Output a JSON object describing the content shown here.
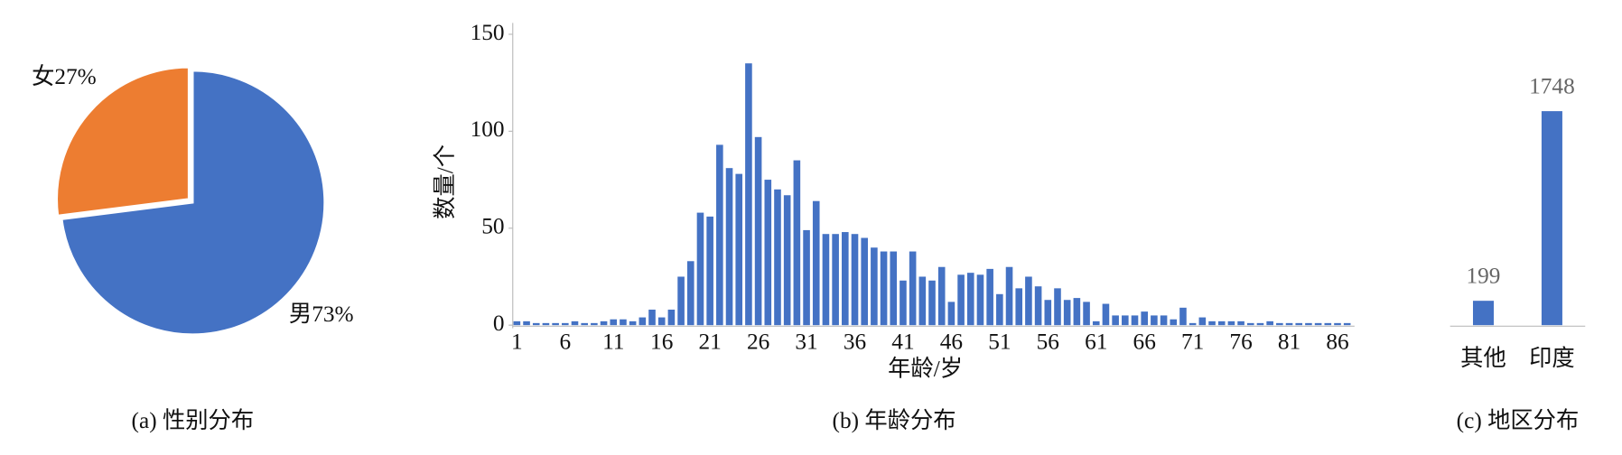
{
  "chart_data": [
    {
      "type": "pie",
      "caption": "(a) 性别分布",
      "categories": [
        "男",
        "女"
      ],
      "values": [
        73,
        27
      ],
      "value_labels": [
        "男73%",
        "女27%"
      ],
      "colors": [
        "#4472c4",
        "#ed7d31"
      ]
    },
    {
      "type": "bar",
      "caption": "(b) 年龄分布",
      "x_label": "年龄/岁",
      "y_label": "数量/个",
      "color": "#4472c4",
      "categories": [
        "1",
        null,
        null,
        null,
        null,
        "6",
        null,
        null,
        null,
        null,
        "11",
        null,
        null,
        null,
        null,
        "16",
        null,
        null,
        null,
        null,
        "21",
        null,
        null,
        null,
        null,
        "26",
        null,
        null,
        null,
        null,
        "31",
        null,
        null,
        null,
        null,
        "36",
        null,
        null,
        null,
        null,
        "41",
        null,
        null,
        null,
        null,
        "46",
        null,
        null,
        null,
        null,
        "51",
        null,
        null,
        null,
        null,
        "56",
        null,
        null,
        null,
        null,
        "61",
        null,
        null,
        null,
        null,
        "66",
        null,
        null,
        null,
        null,
        "71",
        null,
        null,
        null,
        null,
        "76",
        null,
        null,
        null,
        null,
        "81",
        null,
        null,
        null,
        null,
        "86",
        null
      ],
      "values": [
        2,
        2,
        0,
        0,
        0,
        1,
        2,
        0,
        1,
        2,
        3,
        3,
        2,
        4,
        8,
        4,
        8,
        25,
        33,
        58,
        56,
        93,
        81,
        78,
        135,
        97,
        75,
        70,
        67,
        85,
        49,
        64,
        47,
        47,
        48,
        47,
        45,
        40,
        38,
        38,
        23,
        38,
        25,
        23,
        30,
        12,
        26,
        27,
        26,
        29,
        16,
        30,
        19,
        25,
        20,
        13,
        19,
        13,
        14,
        12,
        2,
        11,
        5,
        5,
        5,
        7,
        5,
        5,
        3,
        9,
        1,
        4,
        2,
        2,
        2,
        2,
        1,
        1,
        2,
        0,
        1,
        0,
        0,
        0,
        1,
        1,
        1
      ],
      "ylim": [
        0,
        150
      ],
      "yticks": [
        0,
        50,
        100,
        150
      ]
    },
    {
      "type": "bar",
      "caption": "(c) 地区分布",
      "color": "#4472c4",
      "categories": [
        "其他",
        "印度"
      ],
      "values": [
        199,
        1748
      ]
    }
  ]
}
